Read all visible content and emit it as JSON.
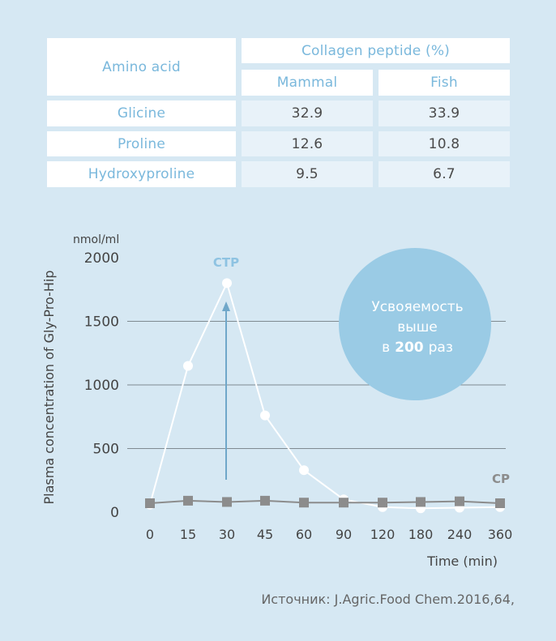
{
  "table": {
    "col_header": "Amino acid",
    "group_header": "Collagen peptide (%)",
    "sub_headers": [
      "Mammal",
      "Fish"
    ],
    "rows": [
      {
        "name": "Glicine",
        "mammal": "32.9",
        "fish": "33.9"
      },
      {
        "name": "Proline",
        "mammal": "12.6",
        "fish": "10.8"
      },
      {
        "name": "Hydroxyproline",
        "mammal": "9.5",
        "fish": "6.7"
      }
    ]
  },
  "chart_data": {
    "type": "line",
    "title": "",
    "xlabel": "Time (min)",
    "ylabel": "Plasma concentration of Gly-Pro-Hip",
    "yunit": "nmol/ml",
    "categories": [
      "0",
      "15",
      "30",
      "45",
      "60",
      "90",
      "120",
      "180",
      "240",
      "360"
    ],
    "yticks": [
      "0",
      "500",
      "1000",
      "1500",
      "2000"
    ],
    "ylim": [
      0,
      2000
    ],
    "grid": true,
    "series": [
      {
        "name": "CTP",
        "color": "#ffffff",
        "marker": "circle",
        "values": [
          60,
          1150,
          1800,
          760,
          330,
          100,
          40,
          30,
          35,
          40
        ]
      },
      {
        "name": "CP",
        "color": "#8c8c8c",
        "marker": "square",
        "values": [
          70,
          90,
          80,
          90,
          75,
          75,
          75,
          80,
          85,
          70
        ]
      }
    ],
    "annotation": {
      "line1": "Усвояемость",
      "line2": "выше",
      "prefix": "в",
      "number": "200",
      "suffix": "раз",
      "color": "#9acbe5"
    }
  },
  "source": "Источник: J.Agric.Food Chem.2016,64,"
}
